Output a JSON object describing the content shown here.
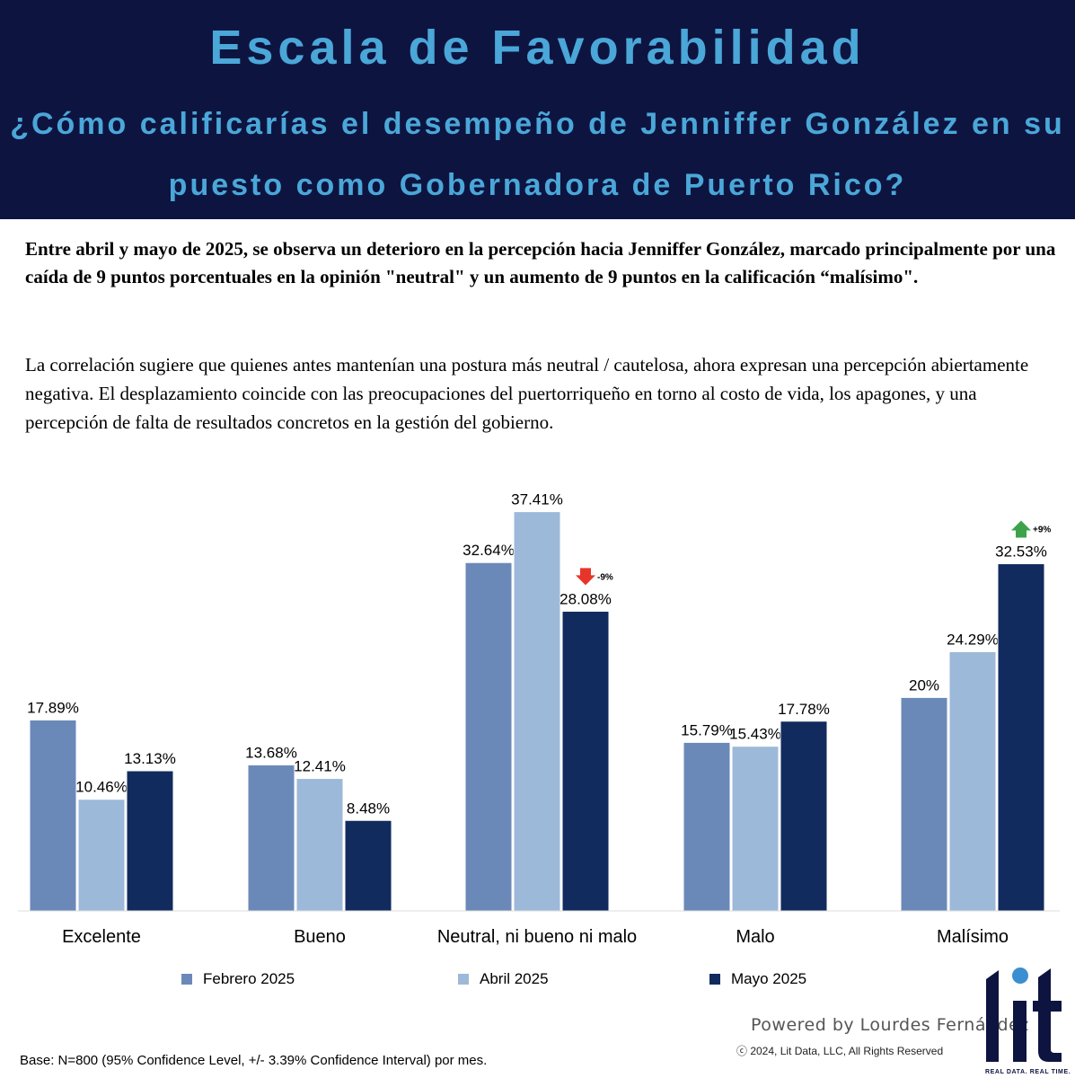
{
  "header": {
    "title": "Escala de Favorabilidad",
    "subtitle": "¿Cómo calificarías el desempeño de Jenniffer González en su puesto como Gobernadora de Puerto Rico?"
  },
  "summary": {
    "bold": "Entre abril y mayo de 2025, se observa un deterioro en la percepción hacia Jenniffer González, marcado principalmente por una caída de 9 puntos porcentuales en la opinión \"neutral\" y un aumento de 9 puntos en la calificación “malísimo\".",
    "body": "La correlación sugiere que quienes antes mantenían una postura más neutral / cautelosa, ahora expresan una percepción abiertamente negativa. El desplazamiento coincide con las preocupaciones del puertorriqueño en torno al costo de vida, los apagones, y una percepción de falta de resultados concretos en la gestión del gobierno."
  },
  "chart_data": {
    "type": "bar",
    "categories": [
      "Excelente",
      "Bueno",
      "Neutral, ni bueno ni malo",
      "Malo",
      "Malísimo"
    ],
    "series": [
      {
        "name": "Febrero 2025",
        "values": [
          17.89,
          13.68,
          32.64,
          15.79,
          20
        ],
        "labels": [
          "17.89%",
          "13.68%",
          "32.64%",
          "15.79%",
          "20%"
        ],
        "color": "#6b89b8"
      },
      {
        "name": "Abril 2025",
        "values": [
          10.46,
          12.41,
          37.41,
          15.43,
          24.29
        ],
        "labels": [
          "10.46%",
          "12.41%",
          "37.41%",
          "15.43%",
          "24.29%"
        ],
        "color": "#9db9d9"
      },
      {
        "name": "Mayo 2025",
        "values": [
          13.13,
          8.48,
          28.08,
          17.78,
          32.53
        ],
        "labels": [
          "13.13%",
          "8.48%",
          "28.08%",
          "17.78%",
          "32.53%"
        ],
        "color": "#112b5e"
      }
    ],
    "annotations": [
      {
        "category": "Neutral, ni bueno ni malo",
        "series": "Mayo 2025",
        "text": "-9%",
        "direction": "down",
        "color": "#e8352b"
      },
      {
        "category": "Malísimo",
        "series": "Mayo 2025",
        "text": "+9%",
        "direction": "up",
        "color": "#3da34a"
      }
    ],
    "ylim": [
      0,
      40
    ],
    "grid": false,
    "legend": "bottom"
  },
  "footer": {
    "base": "Base: N=800 (95% Confidence Level, +/- 3.39% Confidence Interval) por mes.",
    "powered": "Powered by Lourdes Fernández",
    "copyright": "ⓒ  2024, Lit Data, LLC, All Rights Reserved",
    "logo_text": "lit",
    "tagline": "REAL DATA. REAL TIME."
  }
}
